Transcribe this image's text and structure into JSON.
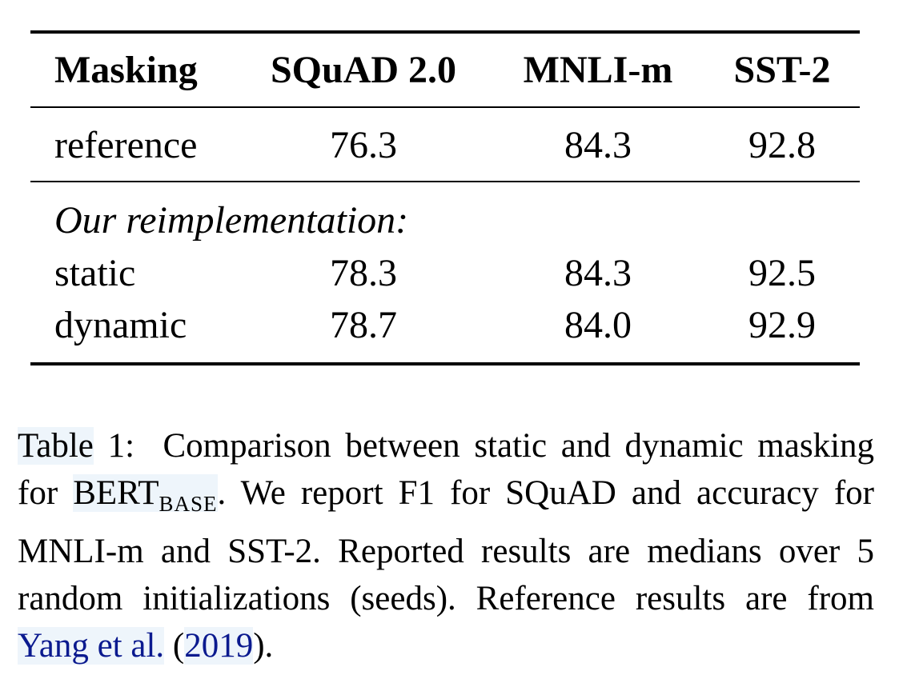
{
  "table": {
    "headers": [
      "Masking",
      "SQuAD 2.0",
      "MNLI-m",
      "SST-2"
    ],
    "reference_row": {
      "label": "reference",
      "values": [
        "76.3",
        "84.3",
        "92.8"
      ]
    },
    "section_label": "Our reimplementation:",
    "rows": [
      {
        "label": "static",
        "values": [
          "78.3",
          "84.3",
          "92.5"
        ]
      },
      {
        "label": "dynamic",
        "values": [
          "78.7",
          "84.0",
          "92.9"
        ]
      }
    ]
  },
  "caption": {
    "table_word": "Table",
    "number": "1:",
    "text1": "Comparison between static and dynamic masking for",
    "model": "BERT",
    "model_sub": "BASE",
    "text2": ". We report F1 for SQuAD and accuracy for MNLI-m and SST-2. Reported results are medians over 5 random initializations (seeds). Reference results are from",
    "cite_authors": "Yang et al.",
    "cite_open": "(",
    "cite_year": "2019",
    "cite_close": ")."
  }
}
